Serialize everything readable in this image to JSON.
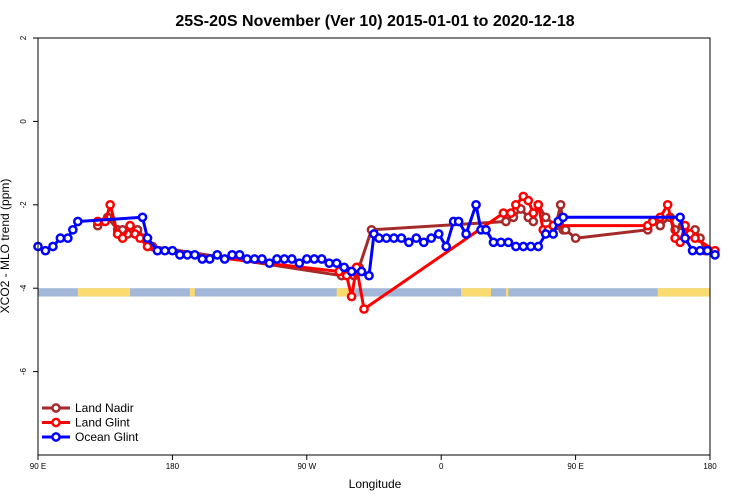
{
  "chart_data": {
    "type": "line",
    "title": "25S-20S November (Ver 10)   2015-01-01 to 2020-12-18",
    "xlabel": "Longitude",
    "ylabel": "XCO2 - MLO trend (ppm)",
    "xlim": [
      -90,
      180
    ],
    "ylim": [
      -8,
      2
    ],
    "x_ticks": [
      {
        "value": -90,
        "label": "90 E"
      },
      {
        "value": -36,
        "label": "180"
      },
      {
        "value": 18,
        "label": "90 W"
      },
      {
        "value": 72,
        "label": "0"
      },
      {
        "value": 126,
        "label": "90 E"
      },
      {
        "value": 180,
        "label": "180"
      }
    ],
    "y_ticks": [
      {
        "value": 2,
        "label": "2"
      },
      {
        "value": 0,
        "label": "0"
      },
      {
        "value": -2,
        "label": "-2"
      },
      {
        "value": -4,
        "label": "-4"
      },
      {
        "value": -6,
        "label": "-6"
      }
    ],
    "land_mask_band": {
      "y_range": [
        -4.2,
        -4.0
      ],
      "ocean_color": "#a3b8d8",
      "land_color": "#fadb70",
      "land_segments": [
        [
          -74,
          -53
        ],
        [
          -29,
          -27
        ],
        [
          30,
          37
        ],
        [
          80,
          92
        ],
        [
          98,
          99
        ],
        [
          159,
          180
        ]
      ]
    },
    "legend_position": "bottom-left",
    "series": [
      {
        "name": "Land Nadir",
        "color": "#a52a2a",
        "points": [
          [
            -66,
            -2.5
          ],
          [
            -62,
            -2.3
          ],
          [
            -58,
            -2.6
          ],
          [
            -56,
            -2.6
          ],
          [
            -54,
            -2.7
          ],
          [
            -50,
            -2.6
          ],
          [
            -47,
            -2.8
          ],
          [
            -44,
            -3.0
          ],
          [
            32,
            -3.7
          ],
          [
            35,
            -3.6
          ],
          [
            37,
            -3.7
          ],
          [
            39,
            -3.5
          ],
          [
            44,
            -2.6
          ],
          [
            98,
            -2.4
          ],
          [
            101,
            -2.3
          ],
          [
            104,
            -2.1
          ],
          [
            107,
            -2.3
          ],
          [
            109,
            -2.4
          ],
          [
            111,
            -2.0
          ],
          [
            114,
            -2.3
          ],
          [
            118,
            -2.5
          ],
          [
            120,
            -2.0
          ],
          [
            121,
            -2.6
          ],
          [
            122,
            -2.6
          ],
          [
            126,
            -2.8
          ],
          [
            155,
            -2.6
          ],
          [
            157,
            -2.4
          ],
          [
            160,
            -2.5
          ],
          [
            164,
            -2.3
          ],
          [
            166,
            -2.6
          ],
          [
            169,
            -2.5
          ],
          [
            171,
            -2.7
          ],
          [
            174,
            -2.6
          ],
          [
            176,
            -2.8
          ],
          [
            178,
            -3.1
          ]
        ]
      },
      {
        "name": "Land Glint",
        "color": "#ff0000",
        "points": [
          [
            -66,
            -2.4
          ],
          [
            -63,
            -2.4
          ],
          [
            -61,
            -2.0
          ],
          [
            -58,
            -2.7
          ],
          [
            -56,
            -2.8
          ],
          [
            -53,
            -2.5
          ],
          [
            -51,
            -2.7
          ],
          [
            -49,
            -2.8
          ],
          [
            -46,
            -3.0
          ],
          [
            -42,
            -3.1
          ],
          [
            31,
            -3.6
          ],
          [
            34,
            -3.7
          ],
          [
            36,
            -4.2
          ],
          [
            38,
            -3.5
          ],
          [
            41,
            -4.5
          ],
          [
            97,
            -2.2
          ],
          [
            100,
            -2.2
          ],
          [
            102,
            -2.0
          ],
          [
            105,
            -1.8
          ],
          [
            107,
            -1.9
          ],
          [
            109,
            -2.2
          ],
          [
            111,
            -2.0
          ],
          [
            113,
            -2.6
          ],
          [
            115,
            -2.6
          ],
          [
            117,
            -2.5
          ],
          [
            155,
            -2.5
          ],
          [
            157,
            -2.4
          ],
          [
            160,
            -2.3
          ],
          [
            163,
            -2.0
          ],
          [
            166,
            -2.8
          ],
          [
            168,
            -2.9
          ],
          [
            170,
            -2.5
          ],
          [
            172,
            -2.7
          ],
          [
            174,
            -2.8
          ],
          [
            182,
            -3.1
          ]
        ]
      },
      {
        "name": "Ocean Glint",
        "color": "#0000ff",
        "points": [
          [
            -90,
            -3.0
          ],
          [
            -87,
            -3.1
          ],
          [
            -84,
            -3.0
          ],
          [
            -81,
            -2.8
          ],
          [
            -78,
            -2.8
          ],
          [
            -76,
            -2.6
          ],
          [
            -74,
            -2.4
          ],
          [
            -48,
            -2.3
          ],
          [
            -46,
            -2.8
          ],
          [
            -42,
            -3.1
          ],
          [
            -39,
            -3.1
          ],
          [
            -36,
            -3.1
          ],
          [
            -33,
            -3.2
          ],
          [
            -30,
            -3.2
          ],
          [
            -27,
            -3.2
          ],
          [
            -24,
            -3.3
          ],
          [
            -21,
            -3.3
          ],
          [
            -18,
            -3.2
          ],
          [
            -15,
            -3.3
          ],
          [
            -12,
            -3.2
          ],
          [
            -9,
            -3.2
          ],
          [
            -6,
            -3.3
          ],
          [
            -3,
            -3.3
          ],
          [
            0,
            -3.3
          ],
          [
            3,
            -3.4
          ],
          [
            6,
            -3.3
          ],
          [
            9,
            -3.3
          ],
          [
            12,
            -3.3
          ],
          [
            15,
            -3.4
          ],
          [
            18,
            -3.3
          ],
          [
            21,
            -3.3
          ],
          [
            24,
            -3.3
          ],
          [
            27,
            -3.4
          ],
          [
            30,
            -3.4
          ],
          [
            33,
            -3.5
          ],
          [
            36,
            -3.6
          ],
          [
            40,
            -3.6
          ],
          [
            43,
            -3.7
          ],
          [
            45,
            -2.7
          ],
          [
            47,
            -2.8
          ],
          [
            50,
            -2.8
          ],
          [
            53,
            -2.8
          ],
          [
            56,
            -2.8
          ],
          [
            59,
            -2.9
          ],
          [
            62,
            -2.8
          ],
          [
            65,
            -2.9
          ],
          [
            68,
            -2.8
          ],
          [
            71,
            -2.7
          ],
          [
            74,
            -3.0
          ],
          [
            77,
            -2.4
          ],
          [
            79,
            -2.4
          ],
          [
            82,
            -2.7
          ],
          [
            86,
            -2.0
          ],
          [
            88,
            -2.6
          ],
          [
            90,
            -2.6
          ],
          [
            93,
            -2.9
          ],
          [
            96,
            -2.9
          ],
          [
            99,
            -2.9
          ],
          [
            102,
            -3.0
          ],
          [
            105,
            -3.0
          ],
          [
            108,
            -3.0
          ],
          [
            111,
            -3.0
          ],
          [
            114,
            -2.7
          ],
          [
            117,
            -2.7
          ],
          [
            119,
            -2.4
          ],
          [
            121,
            -2.3
          ],
          [
            168,
            -2.3
          ],
          [
            170,
            -2.8
          ],
          [
            173,
            -3.1
          ],
          [
            176,
            -3.1
          ],
          [
            179,
            -3.1
          ],
          [
            182,
            -3.2
          ]
        ]
      }
    ]
  }
}
